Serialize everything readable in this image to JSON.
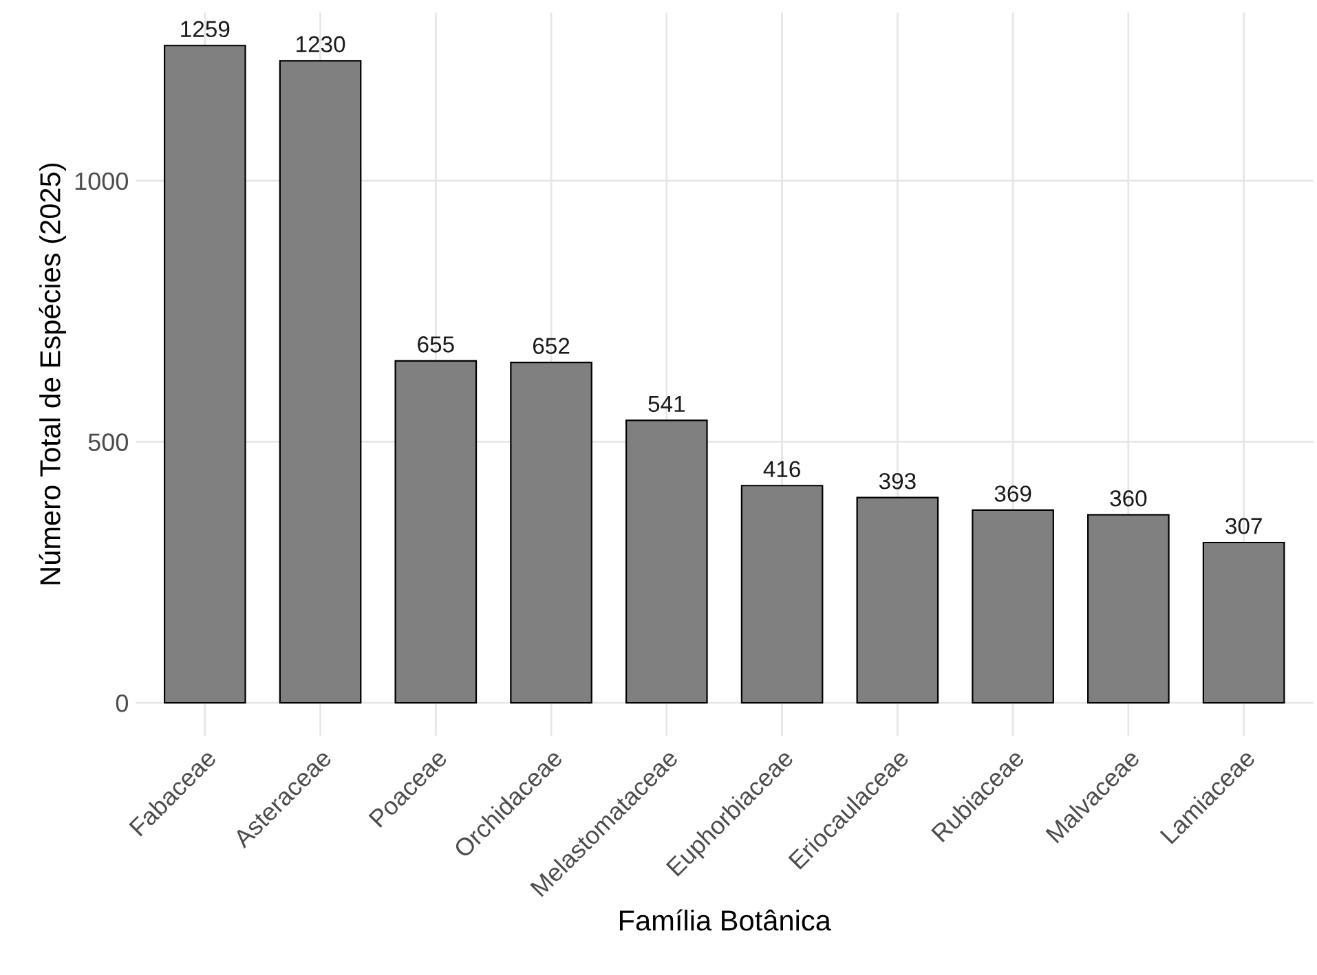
{
  "chart_data": {
    "type": "bar",
    "xlabel": "Família Botânica",
    "ylabel": "Número Total de Espécies (2025)",
    "categories": [
      "Fabaceae",
      "Asteraceae",
      "Poaceae",
      "Orchidaceae",
      "Melastomataceae",
      "Euphorbiaceae",
      "Eriocaulaceae",
      "Rubiaceae",
      "Malvaceae",
      "Lamiaceae"
    ],
    "values": [
      1259,
      1230,
      655,
      652,
      541,
      416,
      393,
      369,
      360,
      307
    ],
    "color": "#808080",
    "ylim": [
      -63,
      1322
    ],
    "yticks": [
      0,
      500,
      1000
    ],
    "grid": true,
    "data_labels": true
  }
}
